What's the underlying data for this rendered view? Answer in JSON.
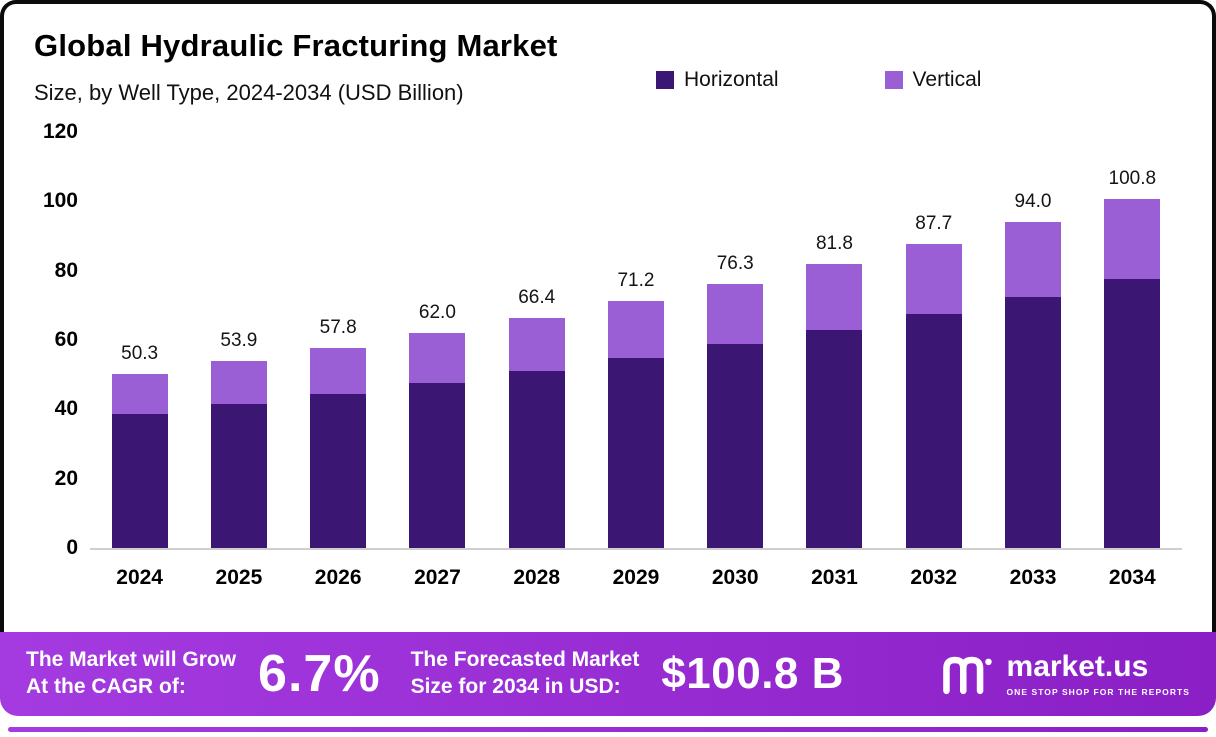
{
  "header": {
    "title": "Global Hydraulic Fracturing Market",
    "subtitle": "Size, by Well Type, 2024-2034 (USD Billion)"
  },
  "legend": [
    {
      "label": "Horizontal",
      "color": "#3b1773"
    },
    {
      "label": "Vertical",
      "color": "#9b5fd5"
    }
  ],
  "chart_data": {
    "type": "bar",
    "stacked": true,
    "title": "Global Hydraulic Fracturing Market Size, by Well Type, 2024-2034 (USD Billion)",
    "categories": [
      "2024",
      "2025",
      "2026",
      "2027",
      "2028",
      "2029",
      "2030",
      "2031",
      "2032",
      "2033",
      "2034"
    ],
    "series": [
      {
        "name": "Horizontal",
        "color": "#3b1773",
        "values": [
          38.7,
          41.5,
          44.5,
          47.7,
          51.1,
          54.8,
          58.8,
          63.0,
          67.5,
          72.4,
          77.6
        ]
      },
      {
        "name": "Vertical",
        "color": "#9b5fd5",
        "values": [
          11.6,
          12.4,
          13.3,
          14.3,
          15.3,
          16.4,
          17.5,
          18.8,
          20.2,
          21.6,
          23.2
        ]
      }
    ],
    "totals": [
      50.3,
      53.9,
      57.8,
      62.0,
      66.4,
      71.2,
      76.3,
      81.8,
      87.7,
      94.0,
      100.8
    ],
    "total_labels": [
      "50.3",
      "53.9",
      "57.8",
      "62.0",
      "66.4",
      "71.2",
      "76.3",
      "81.8",
      "87.7",
      "94.0",
      "100.8"
    ],
    "xlabel": "",
    "ylabel": "",
    "ylim": [
      0,
      120
    ],
    "yticks": [
      0,
      20,
      40,
      60,
      80,
      100,
      120
    ],
    "grid": false,
    "legend_position": "top-right"
  },
  "banner": {
    "cagr_label_line1": "The Market will Grow",
    "cagr_label_line2": "At the CAGR of:",
    "cagr_value": "6.7%",
    "forecast_label_line1": "The Forecasted Market",
    "forecast_label_line2": "Size for 2034 in USD:",
    "forecast_value": "$100.8 B",
    "brand_name": "market.us",
    "brand_tagline": "ONE STOP SHOP FOR THE REPORTS"
  },
  "colors": {
    "horizontal": "#3b1773",
    "vertical": "#9b5fd5",
    "banner_start": "#a43be0",
    "banner_end": "#8b1fc6",
    "axis_line": "#cfcfcf"
  }
}
